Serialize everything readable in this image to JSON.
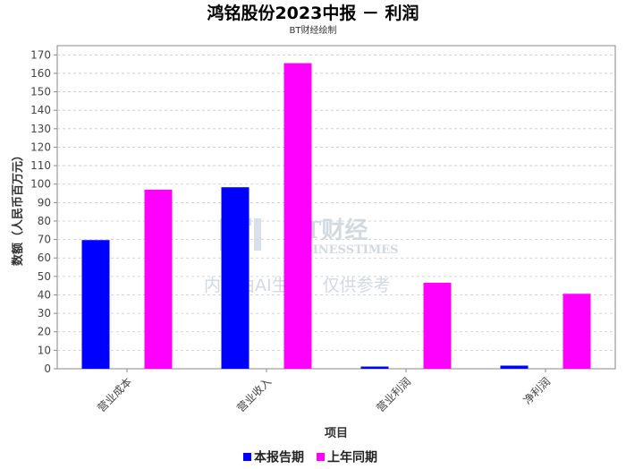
{
  "chart_data": {
    "type": "bar",
    "title": "鸿铭股份2023中报 － 利润",
    "subtitle": "BT财经绘制",
    "xlabel": "项目",
    "ylabel": "数额（人民币百万元）",
    "ylim": [
      0,
      175
    ],
    "yticks": [
      0,
      10,
      20,
      30,
      40,
      50,
      60,
      70,
      80,
      90,
      100,
      110,
      120,
      130,
      140,
      150,
      160,
      170
    ],
    "grid": true,
    "legend_position": "bottom",
    "categories": [
      "营业成本",
      "营业收入",
      "营业利润",
      "净利润"
    ],
    "series": [
      {
        "name": "本报告期",
        "color": "#0000ff",
        "values": [
          69.7,
          98.3,
          1.2,
          1.7
        ]
      },
      {
        "name": "上年同期",
        "color": "#ff00ff",
        "values": [
          97.0,
          165.5,
          46.6,
          40.6
        ]
      }
    ]
  },
  "watermark": {
    "brand": "BT财经",
    "brand_en": "BUSINESSTIMES",
    "notice": "内容由AI生成，仅供参考"
  }
}
